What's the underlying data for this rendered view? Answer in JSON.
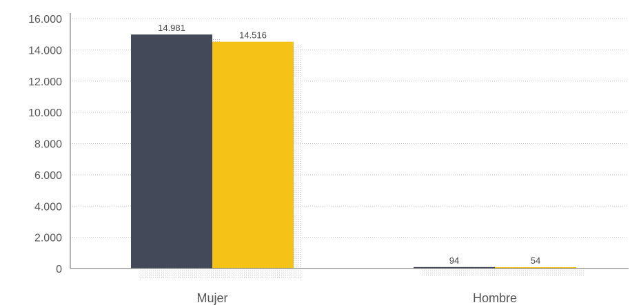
{
  "chart_data": {
    "type": "bar",
    "categories": [
      "Mujer",
      "Hombre"
    ],
    "series": [
      {
        "values": [
          14981,
          94
        ],
        "labels": [
          "14.981",
          "94"
        ],
        "color": "#434959"
      },
      {
        "values": [
          14516,
          54
        ],
        "labels": [
          "14.516",
          "54"
        ],
        "color": "#f5c218"
      }
    ],
    "ylim": [
      0,
      16000
    ],
    "yticks": [
      0,
      2000,
      4000,
      6000,
      8000,
      10000,
      12000,
      14000,
      16000
    ],
    "ytick_labels": [
      "0",
      "2.000",
      "4.000",
      "6.000",
      "8.000",
      "10.000",
      "12.000",
      "14.000",
      "16.000"
    ],
    "grid": true,
    "title": "",
    "xlabel": "",
    "ylabel": ""
  }
}
